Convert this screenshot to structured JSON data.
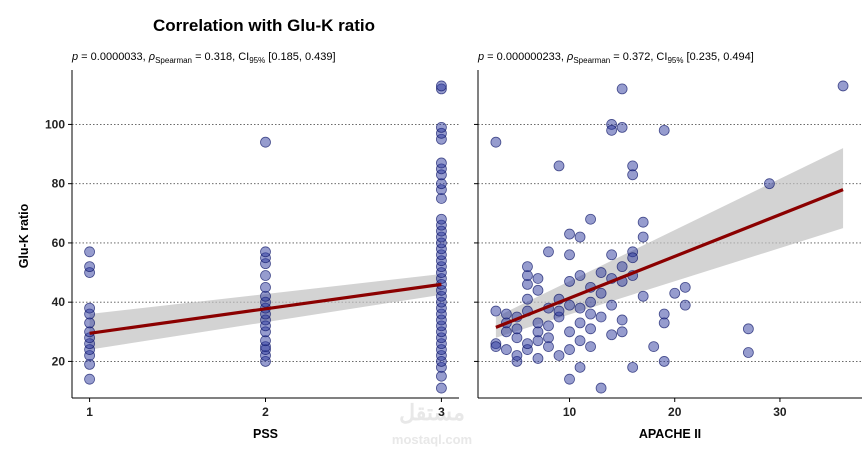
{
  "title": "Correlation with Glu-K ratio",
  "watermark": {
    "text": "مستقل",
    "sub": "mostaql.com"
  },
  "y_axis": {
    "label": "Glu-K ratio",
    "ticks": [
      20,
      40,
      60,
      80,
      100
    ],
    "ylim": [
      9,
      115
    ]
  },
  "colors": {
    "point_fill": "#2e3a9e",
    "point_stroke": "#0b1466",
    "line": "#8b0000",
    "band": "#c0c0c0",
    "grid": "#555555"
  },
  "chart_data": [
    {
      "type": "scatter",
      "subtitle": {
        "p_label": "p",
        "p_value": "= 0.0000033, ",
        "rho": "ρ",
        "rho_sub": "Spearman",
        "rho_value": " = 0.318, CI",
        "ci_sub": "95%",
        "ci_value": " [0.185, 0.439]"
      },
      "xlabel": "PSS",
      "ylabel": "Glu-K ratio",
      "xlim": [
        0.9,
        3.1
      ],
      "x_ticks": [
        1,
        2,
        3
      ],
      "y_ticks": [
        20,
        40,
        60,
        80,
        100
      ],
      "grid": "horizontal dotted",
      "points": [
        [
          1,
          14
        ],
        [
          1,
          19
        ],
        [
          1,
          22
        ],
        [
          1,
          24
        ],
        [
          1,
          26
        ],
        [
          1,
          28
        ],
        [
          1,
          30
        ],
        [
          1,
          33
        ],
        [
          1,
          36
        ],
        [
          1,
          38
        ],
        [
          1,
          50
        ],
        [
          1,
          52
        ],
        [
          1,
          57
        ],
        [
          2,
          20
        ],
        [
          2,
          22
        ],
        [
          2,
          24
        ],
        [
          2,
          25
        ],
        [
          2,
          27
        ],
        [
          2,
          30
        ],
        [
          2,
          32
        ],
        [
          2,
          34
        ],
        [
          2,
          36
        ],
        [
          2,
          38
        ],
        [
          2,
          40
        ],
        [
          2,
          42
        ],
        [
          2,
          45
        ],
        [
          2,
          49
        ],
        [
          2,
          53
        ],
        [
          2,
          55
        ],
        [
          2,
          57
        ],
        [
          2,
          94
        ],
        [
          3,
          11
        ],
        [
          3,
          15
        ],
        [
          3,
          18
        ],
        [
          3,
          20
        ],
        [
          3,
          22
        ],
        [
          3,
          24
        ],
        [
          3,
          26
        ],
        [
          3,
          28
        ],
        [
          3,
          30
        ],
        [
          3,
          32
        ],
        [
          3,
          34
        ],
        [
          3,
          36
        ],
        [
          3,
          38
        ],
        [
          3,
          40
        ],
        [
          3,
          42
        ],
        [
          3,
          44
        ],
        [
          3,
          46
        ],
        [
          3,
          48
        ],
        [
          3,
          50
        ],
        [
          3,
          52
        ],
        [
          3,
          54
        ],
        [
          3,
          56
        ],
        [
          3,
          58
        ],
        [
          3,
          60
        ],
        [
          3,
          62
        ],
        [
          3,
          64
        ],
        [
          3,
          66
        ],
        [
          3,
          68
        ],
        [
          3,
          75
        ],
        [
          3,
          78
        ],
        [
          3,
          80
        ],
        [
          3,
          83
        ],
        [
          3,
          85
        ],
        [
          3,
          87
        ],
        [
          3,
          95
        ],
        [
          3,
          97
        ],
        [
          3,
          99
        ],
        [
          3,
          112
        ],
        [
          3,
          113
        ]
      ],
      "fit": {
        "x": [
          1,
          3
        ],
        "y": [
          29.5,
          46
        ],
        "ci_lower": [
          24,
          42.5
        ],
        "ci_upper": [
          36,
          49.5
        ]
      }
    },
    {
      "type": "scatter",
      "subtitle": {
        "p_label": "p",
        "p_value": "= 0.000000233, ",
        "rho": "ρ",
        "rho_sub": "Spearman",
        "rho_value": " = 0.372, CI",
        "ci_sub": "95%",
        "ci_value": " [0.235, 0.494]"
      },
      "xlabel": "APACHE II",
      "ylabel": "",
      "xlim": [
        1.3,
        37.8
      ],
      "x_ticks": [
        10,
        20,
        30
      ],
      "y_ticks": [
        20,
        40,
        60,
        80,
        100
      ],
      "grid": "horizontal dotted",
      "points": [
        [
          3,
          94
        ],
        [
          3,
          37
        ],
        [
          3,
          26
        ],
        [
          3,
          25
        ],
        [
          4,
          33
        ],
        [
          4,
          30
        ],
        [
          4,
          24
        ],
        [
          4,
          36
        ],
        [
          5,
          20
        ],
        [
          5,
          22
        ],
        [
          5,
          28
        ],
        [
          5,
          31
        ],
        [
          5,
          35
        ],
        [
          6,
          46
        ],
        [
          6,
          49
        ],
        [
          6,
          52
        ],
        [
          6,
          41
        ],
        [
          6,
          24
        ],
        [
          6,
          26
        ],
        [
          6,
          37
        ],
        [
          7,
          30
        ],
        [
          7,
          27
        ],
        [
          7,
          44
        ],
        [
          7,
          48
        ],
        [
          7,
          21
        ],
        [
          7,
          33
        ],
        [
          8,
          28
        ],
        [
          8,
          38
        ],
        [
          8,
          32
        ],
        [
          8,
          25
        ],
        [
          8,
          57
        ],
        [
          9,
          41
        ],
        [
          9,
          35
        ],
        [
          9,
          37
        ],
        [
          9,
          86
        ],
        [
          9,
          22
        ],
        [
          10,
          63
        ],
        [
          10,
          56
        ],
        [
          10,
          47
        ],
        [
          10,
          39
        ],
        [
          10,
          30
        ],
        [
          10,
          24
        ],
        [
          10,
          14
        ],
        [
          11,
          62
        ],
        [
          11,
          49
        ],
        [
          11,
          38
        ],
        [
          11,
          33
        ],
        [
          11,
          27
        ],
        [
          11,
          18
        ],
        [
          12,
          68
        ],
        [
          12,
          45
        ],
        [
          12,
          40
        ],
        [
          12,
          36
        ],
        [
          12,
          31
        ],
        [
          12,
          25
        ],
        [
          13,
          11
        ],
        [
          13,
          50
        ],
        [
          13,
          43
        ],
        [
          13,
          35
        ],
        [
          14,
          100
        ],
        [
          14,
          98
        ],
        [
          14,
          56
        ],
        [
          14,
          48
        ],
        [
          14,
          39
        ],
        [
          14,
          29
        ],
        [
          15,
          112
        ],
        [
          15,
          99
        ],
        [
          15,
          52
        ],
        [
          15,
          47
        ],
        [
          15,
          34
        ],
        [
          15,
          30
        ],
        [
          16,
          86
        ],
        [
          16,
          83
        ],
        [
          16,
          57
        ],
        [
          16,
          55
        ],
        [
          16,
          49
        ],
        [
          16,
          18
        ],
        [
          17,
          67
        ],
        [
          17,
          62
        ],
        [
          17,
          42
        ],
        [
          18,
          25
        ],
        [
          19,
          98
        ],
        [
          19,
          36
        ],
        [
          19,
          33
        ],
        [
          19,
          20
        ],
        [
          20,
          43
        ],
        [
          21,
          45
        ],
        [
          21,
          39
        ],
        [
          27,
          31
        ],
        [
          27,
          23
        ],
        [
          29,
          80
        ],
        [
          36,
          113
        ]
      ],
      "fit": {
        "x": [
          3,
          36
        ],
        "y": [
          31.5,
          78
        ],
        "ci_lower": [
          28,
          65
        ],
        "ci_upper": [
          35,
          92
        ]
      }
    }
  ]
}
